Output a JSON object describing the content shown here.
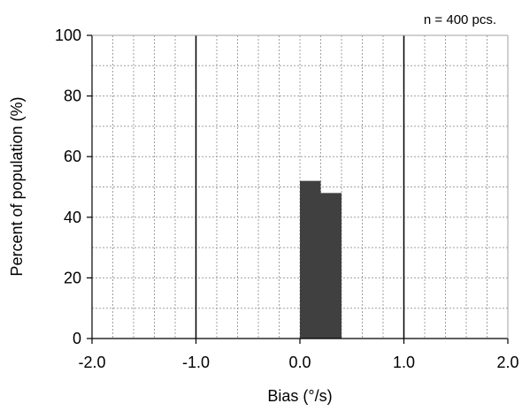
{
  "chart_data": {
    "type": "bar",
    "title": "",
    "annotation": "n = 400 pcs.",
    "xlabel": "Bias (°/s)",
    "ylabel": "Percent of population (%)",
    "xlim": [
      -2.0,
      2.0
    ],
    "ylim": [
      0,
      100
    ],
    "x_ticks": [
      "-2.0",
      "-1.0",
      "0.0",
      "1.0",
      "2.0"
    ],
    "x_tick_values": [
      -2.0,
      -1.0,
      0.0,
      1.0,
      2.0
    ],
    "y_ticks": [
      "0",
      "20",
      "40",
      "60",
      "80",
      "100"
    ],
    "y_tick_values": [
      0,
      20,
      40,
      60,
      80,
      100
    ],
    "minor_grid_x_step": 0.2,
    "minor_grid_y_step": 10,
    "grid": true,
    "bin_width": 0.2,
    "bins": [
      {
        "x_start": 0.0,
        "x_end": 0.2,
        "value": 52
      },
      {
        "x_start": 0.2,
        "x_end": 0.4,
        "value": 48
      }
    ],
    "spec_limits": [
      -1.0,
      1.0
    ],
    "colors": {
      "bars": "#404040",
      "grid": "#a0a0a0",
      "axis": "#000000",
      "spec_line": "#000000"
    }
  }
}
